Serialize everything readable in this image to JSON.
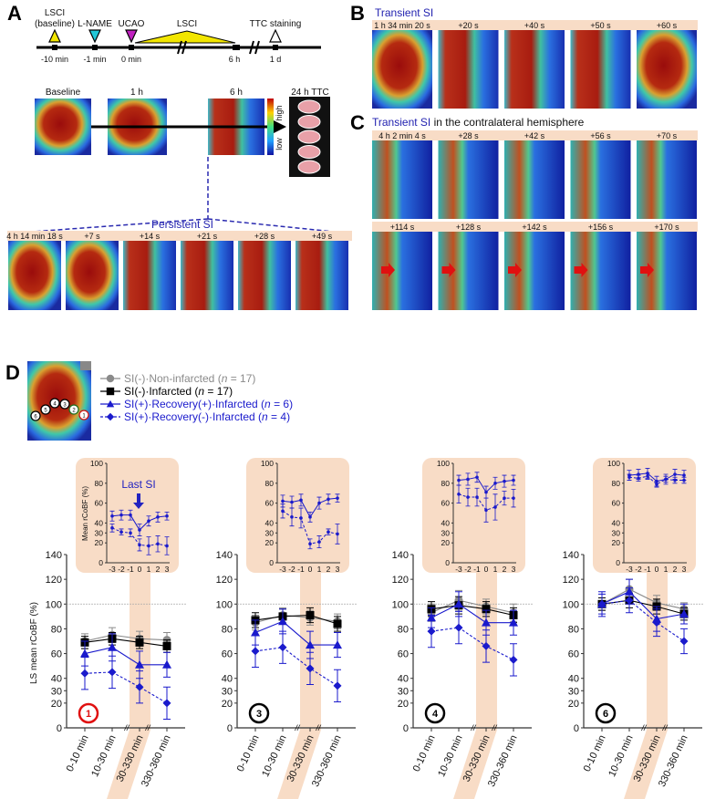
{
  "panel_labels": {
    "a": "A",
    "b": "B",
    "c": "C",
    "d": "D"
  },
  "timeline": {
    "events": [
      {
        "label_line1": "LSCI",
        "label_line2": "(baseline)",
        "time": "-10 min",
        "marker": "triangle-up",
        "color": "#f2e600"
      },
      {
        "label_line1": "",
        "label_line2": "L-NAME",
        "time": "-1 min",
        "marker": "triangle-down",
        "color": "#22c8d8"
      },
      {
        "label_line1": "",
        "label_line2": "UCAO",
        "time": "0 min",
        "marker": "triangle-down",
        "color": "#c020c0"
      },
      {
        "label_line1": "",
        "label_line2": "LSCI",
        "time": "",
        "marker": "wedge",
        "color": "#f2e600"
      },
      {
        "label_line1": "",
        "label_line2": "",
        "time": "6 h",
        "marker": "none",
        "color": ""
      },
      {
        "label_line1": "",
        "label_line2": "TTC staining",
        "time": "1 d",
        "marker": "triangle-up-hollow",
        "color": "#ffffff"
      }
    ]
  },
  "panel_a": {
    "image_labels": [
      "Baseline",
      "1 h",
      "6 h",
      "24 h TTC"
    ],
    "colorbar": {
      "high": "high",
      "low": "low"
    },
    "persistent_title": "Persistent SI",
    "persistent_frames": [
      "4 h 14 min 18 s",
      "+7 s",
      "+14 s",
      "+21 s",
      "+28 s",
      "+49 s"
    ]
  },
  "panel_b": {
    "title": "Transient SI",
    "frames": [
      "1 h 34 min 20 s",
      "+20 s",
      "+40 s",
      "+50 s",
      "+60 s"
    ]
  },
  "panel_c": {
    "title_colored": "Transient SI",
    "title_rest": " in the contralateral hemisphere",
    "frames_row1": [
      "4 h 2 min 4 s",
      "+28 s",
      "+42 s",
      "+56 s",
      "+70 s"
    ],
    "frames_row2": [
      "+114 s",
      "+128 s",
      "+142 s",
      "+156 s",
      "+170 s"
    ]
  },
  "panel_d": {
    "roi_numbers": [
      "6",
      "5",
      "4",
      "3",
      "2",
      "1"
    ],
    "legend": [
      {
        "pre": "SI(-)·Non-infarcted (",
        "n": "n",
        "post": " = 17)",
        "color": "#8a8a8a",
        "marker": "circle",
        "dash": false
      },
      {
        "pre": "SI(-)·Infarcted (",
        "n": "n",
        "post": " = 17)",
        "color": "#000000",
        "marker": "square",
        "dash": false
      },
      {
        "pre": "SI(+)·Recovery(+)·Infarcted (",
        "n": "n",
        "post": " = 6)",
        "color": "#1a1acc",
        "marker": "triangle",
        "dash": false
      },
      {
        "pre": "SI(+)·Recovery(-)·Infarcted (",
        "n": "n",
        "post": " = 4)",
        "color": "#1a1acc",
        "marker": "diamond",
        "dash": true
      }
    ],
    "ylabel": "LS mean  rCoBF (%)",
    "inset_ylabel": "Mean rCoBF (%)",
    "last_si_label": "Last SI",
    "band_color": "#f8dcc6"
  },
  "chart_data": [
    {
      "type": "line",
      "roi": "1",
      "roi_color": "#e01010",
      "categories": [
        "0-10 min",
        "10-30 min",
        "30-330 min",
        "330-360 min"
      ],
      "ylim": [
        0,
        140
      ],
      "yticks": [
        0,
        20,
        30,
        40,
        60,
        80,
        100,
        120,
        140
      ],
      "series": [
        {
          "name": "SI(-)·Non-infarcted",
          "values": [
            70,
            75,
            72,
            71
          ],
          "err": [
            6,
            6,
            6,
            6
          ]
        },
        {
          "name": "SI(-)·Infarcted",
          "values": [
            69,
            72,
            69,
            66
          ],
          "err": [
            5,
            5,
            5,
            5
          ]
        },
        {
          "name": "SI(+)·Recovery(+)·Infarcted",
          "values": [
            60,
            65,
            51,
            51
          ],
          "err": [
            10,
            11,
            11,
            10
          ]
        },
        {
          "name": "SI(+)·Recovery(-)·Infarcted",
          "values": [
            44,
            45,
            33,
            20
          ],
          "err": [
            13,
            13,
            13,
            13
          ]
        }
      ],
      "inset": {
        "x": [
          "-3",
          "-2",
          "-1",
          "0",
          "1",
          "2",
          "3"
        ],
        "ylim": [
          0,
          100
        ],
        "yticks": [
          0,
          20,
          30,
          40,
          60,
          80,
          100
        ],
        "series": [
          {
            "name": "SI(+)·Recovery(+)·Infarcted",
            "values": [
              47,
              48,
              48,
              33,
              42,
              46,
              47
            ],
            "err": [
              5,
              5,
              5,
              6,
              5,
              5,
              4
            ]
          },
          {
            "name": "SI(+)·Recovery(-)·Infarcted",
            "values": [
              35,
              31,
              30,
              18,
              17,
              19,
              17
            ],
            "err": [
              4,
              3,
              4,
              6,
              9,
              8,
              9
            ]
          }
        ]
      }
    },
    {
      "type": "line",
      "roi": "3",
      "roi_color": "#000000",
      "categories": [
        "0-10 min",
        "10-30 min",
        "30-330 min",
        "330-360 min"
      ],
      "ylim": [
        0,
        140
      ],
      "yticks": [
        0,
        20,
        30,
        40,
        60,
        80,
        100,
        120,
        140
      ],
      "series": [
        {
          "name": "SI(-)·Non-infarcted",
          "values": [
            85,
            91,
            89,
            86
          ],
          "err": [
            6,
            6,
            6,
            6
          ]
        },
        {
          "name": "SI(-)·Infarcted",
          "values": [
            87,
            90,
            91,
            84
          ],
          "err": [
            6,
            6,
            6,
            6
          ]
        },
        {
          "name": "SI(+)·Recovery(+)·Infarcted",
          "values": [
            77,
            86,
            67,
            67
          ],
          "err": [
            10,
            10,
            11,
            10
          ]
        },
        {
          "name": "SI(+)·Recovery(-)·Infarcted",
          "values": [
            62,
            65,
            48,
            34
          ],
          "err": [
            13,
            13,
            13,
            13
          ]
        }
      ],
      "inset": {
        "x": [
          "-3",
          "-2",
          "-1",
          "0",
          "1",
          "2",
          "3"
        ],
        "ylim": [
          0,
          100
        ],
        "yticks": [
          0,
          20,
          30,
          40,
          60,
          80,
          100
        ],
        "series": [
          {
            "name": "SI(+)·Recovery(+)·Infarcted",
            "values": [
              62,
              61,
              63,
              46,
              60,
              64,
              65
            ],
            "err": [
              6,
              6,
              6,
              5,
              6,
              5,
              4
            ]
          },
          {
            "name": "SI(+)·Recovery(-)·Infarcted",
            "values": [
              52,
              46,
              45,
              19,
              21,
              31,
              29
            ],
            "err": [
              7,
              9,
              10,
              5,
              6,
              3,
              10
            ]
          }
        ]
      }
    },
    {
      "type": "line",
      "roi": "4",
      "roi_color": "#000000",
      "categories": [
        "0-10 min",
        "10-30 min",
        "30-330 min",
        "330-360 min"
      ],
      "ylim": [
        0,
        140
      ],
      "yticks": [
        0,
        20,
        30,
        40,
        60,
        80,
        100,
        120,
        140
      ],
      "series": [
        {
          "name": "SI(-)·Non-infarcted",
          "values": [
            93,
            103,
            98,
            93
          ],
          "err": [
            7,
            8,
            6,
            7
          ]
        },
        {
          "name": "SI(-)·Infarcted",
          "values": [
            96,
            99,
            96,
            91
          ],
          "err": [
            6,
            7,
            6,
            6
          ]
        },
        {
          "name": "SI(+)·Recovery(+)·Infarcted",
          "values": [
            89,
            100,
            85,
            85
          ],
          "err": [
            8,
            10,
            10,
            10
          ]
        },
        {
          "name": "SI(+)·Recovery(-)·Infarcted",
          "values": [
            78,
            81,
            66,
            55
          ],
          "err": [
            13,
            13,
            13,
            13
          ]
        }
      ],
      "inset": {
        "x": [
          "-3",
          "-2",
          "-1",
          "0",
          "1",
          "2",
          "3"
        ],
        "ylim": [
          0,
          100
        ],
        "yticks": [
          0,
          20,
          30,
          40,
          60,
          80,
          100
        ],
        "series": [
          {
            "name": "SI(+)·Recovery(+)·Infarcted",
            "values": [
              83,
              84,
              86,
              71,
              80,
              82,
              83
            ],
            "err": [
              5,
              6,
              5,
              6,
              6,
              6,
              5
            ]
          },
          {
            "name": "SI(+)·Recovery(-)·Infarcted",
            "values": [
              69,
              66,
              66,
              53,
              56,
              65,
              65
            ],
            "err": [
              9,
              9,
              9,
              12,
              13,
              7,
              9
            ]
          }
        ]
      }
    },
    {
      "type": "line",
      "roi": "6",
      "roi_color": "#000000",
      "categories": [
        "0-10 min",
        "10-30 min",
        "30-330 min",
        "330-360 min"
      ],
      "ylim": [
        0,
        140
      ],
      "yticks": [
        0,
        20,
        30,
        40,
        60,
        80,
        100,
        120,
        140
      ],
      "series": [
        {
          "name": "SI(-)·Non-infarcted",
          "values": [
            100,
            112,
            101,
            96
          ],
          "err": [
            5,
            8,
            6,
            5
          ]
        },
        {
          "name": "SI(-)·Infarcted",
          "values": [
            100,
            103,
            98,
            92
          ],
          "err": [
            5,
            6,
            6,
            5
          ]
        },
        {
          "name": "SI(+)·Recovery(+)·Infarcted",
          "values": [
            100,
            110,
            88,
            92
          ],
          "err": [
            10,
            10,
            10,
            8
          ]
        },
        {
          "name": "SI(+)·Recovery(-)·Infarcted",
          "values": [
            100,
            103,
            85,
            70
          ],
          "err": [
            8,
            10,
            11,
            10
          ]
        }
      ],
      "inset": {
        "x": [
          "-3",
          "-2",
          "-1",
          "0",
          "1",
          "2",
          "3"
        ],
        "ylim": [
          0,
          100
        ],
        "yticks": [
          0,
          20,
          30,
          40,
          60,
          80,
          100
        ],
        "series": [
          {
            "name": "SI(+)·Recovery(+)·Infarcted",
            "values": [
              88,
              89,
              90,
              82,
              84,
              89,
              88
            ],
            "err": [
              5,
              5,
              5,
              5,
              5,
              5,
              5
            ]
          },
          {
            "name": "SI(+)·Recovery(-)·Infarcted",
            "values": [
              86,
              85,
              87,
              79,
              84,
              83,
              83
            ],
            "err": [
              3,
              3,
              3,
              3,
              3,
              3,
              3
            ]
          }
        ]
      }
    }
  ]
}
